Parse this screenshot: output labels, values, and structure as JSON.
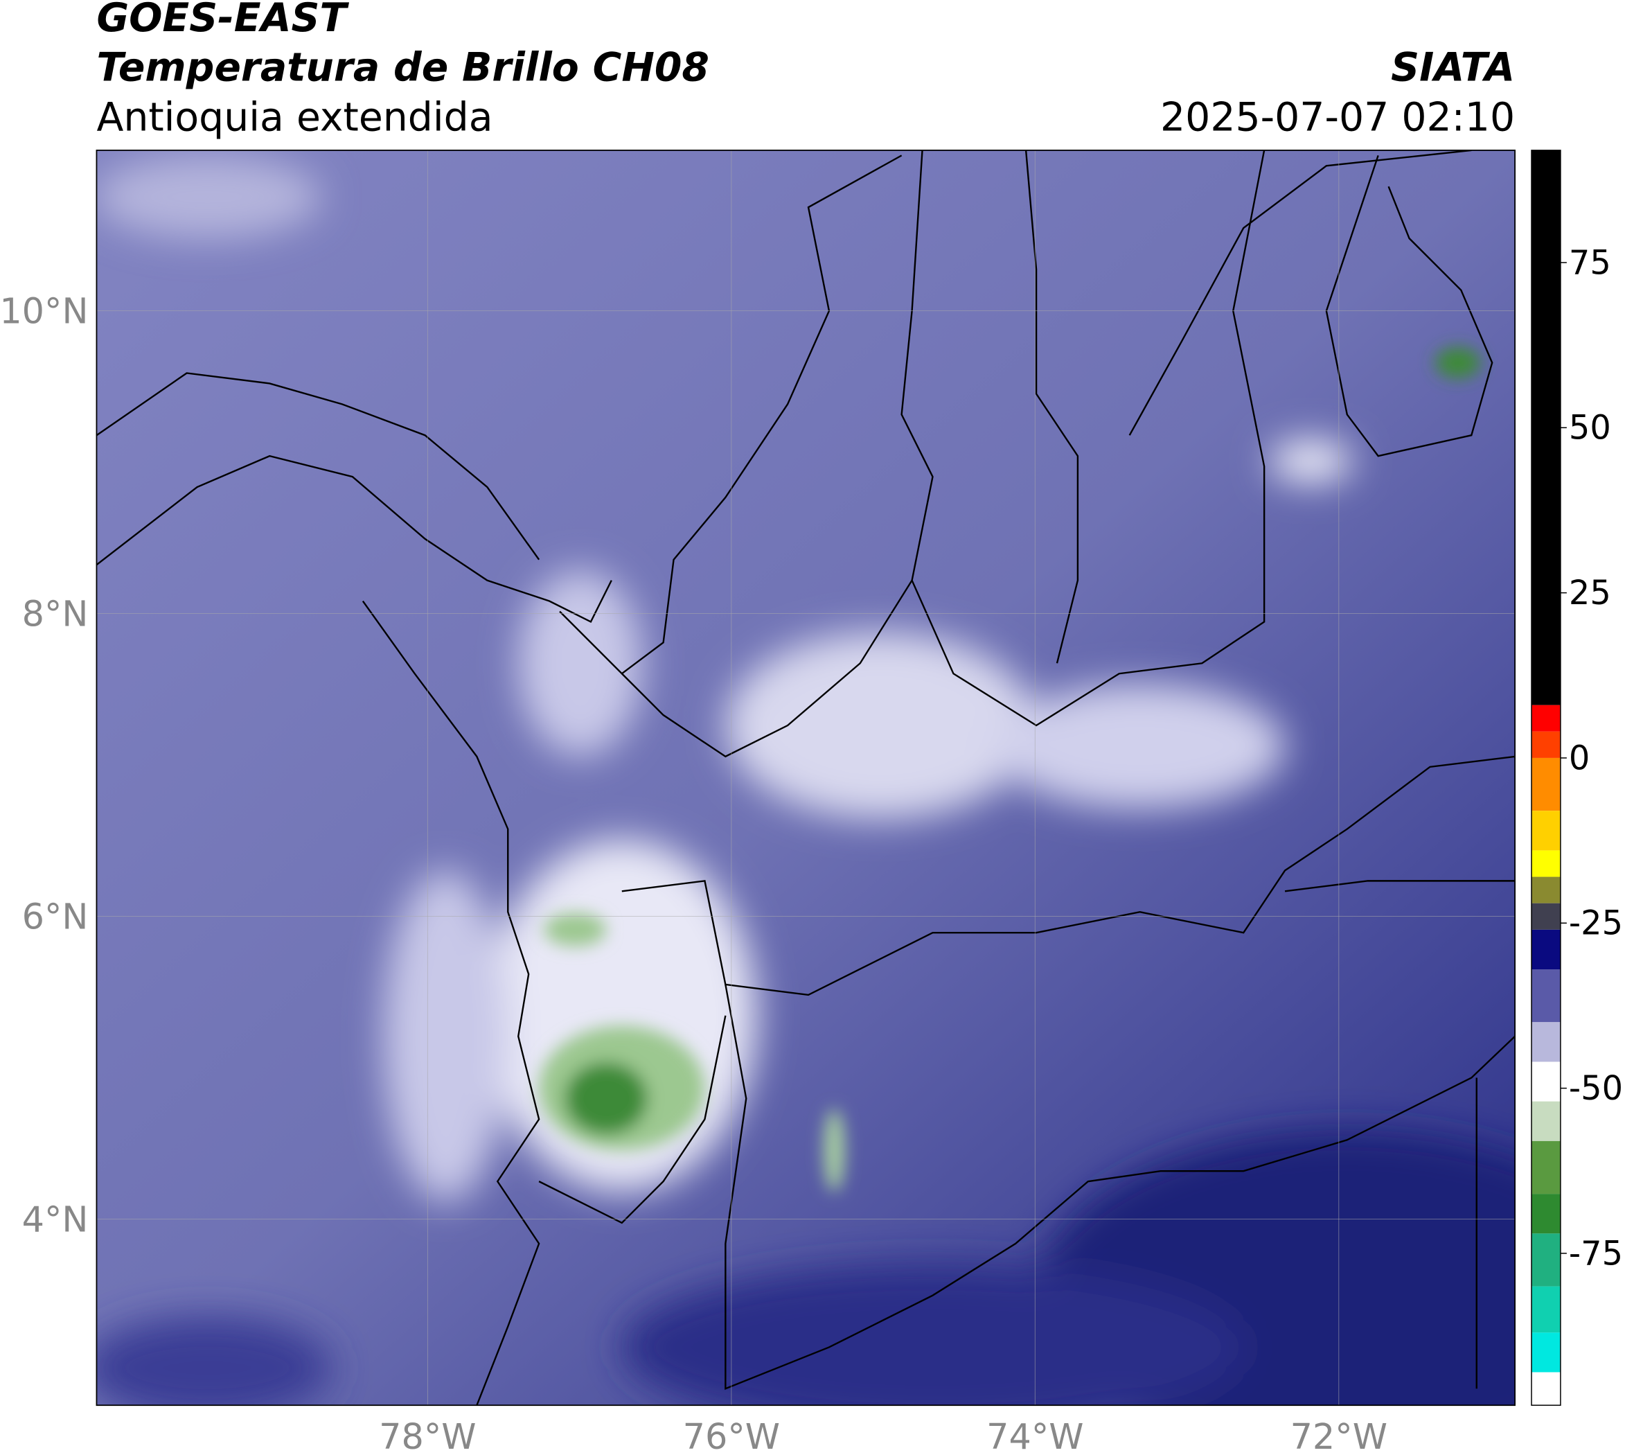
{
  "header": {
    "title": "GOES-EAST",
    "subtitle": "Temperatura de Brillo CH08",
    "region": "Antioquia extendida",
    "source": "SIATA",
    "datetime": "2025-07-07 02:10"
  },
  "map": {
    "lat_lim": [
      2.77,
      11.06
    ],
    "lon_lim": [
      -80.18,
      -70.84
    ],
    "grid": true,
    "lat_ticks": [
      {
        "value": 4,
        "label": "4°N"
      },
      {
        "value": 6,
        "label": "6°N"
      },
      {
        "value": 8,
        "label": "8°N"
      },
      {
        "value": 10,
        "label": "10°N"
      }
    ],
    "lon_ticks": [
      {
        "value": -78,
        "label": "78°W"
      },
      {
        "value": -76,
        "label": "76°W"
      },
      {
        "value": -74,
        "label": "74°W"
      },
      {
        "value": -72,
        "label": "72°W"
      }
    ]
  },
  "colorbar": {
    "lim": [
      -98,
      92
    ],
    "ticks": [
      -75,
      -50,
      -25,
      0,
      25,
      50,
      75
    ],
    "stops": [
      {
        "from": 8,
        "to": 92,
        "color": "#000000"
      },
      {
        "from": 4,
        "to": 8,
        "color": "#ff0000"
      },
      {
        "from": 0,
        "to": 4,
        "color": "#ff4000"
      },
      {
        "from": -8,
        "to": 0,
        "color": "#ff8c00"
      },
      {
        "from": -14,
        "to": -8,
        "color": "#ffd000"
      },
      {
        "from": -18,
        "to": -14,
        "color": "#ffff00"
      },
      {
        "from": -22,
        "to": -18,
        "color": "#8a8a30"
      },
      {
        "from": -26,
        "to": -22,
        "color": "#404050"
      },
      {
        "from": -32,
        "to": -26,
        "color": "#0a0a80"
      },
      {
        "from": -40,
        "to": -32,
        "color": "#5a5aa8"
      },
      {
        "from": -46,
        "to": -40,
        "color": "#b8b8dc"
      },
      {
        "from": -52,
        "to": -46,
        "color": "#ffffff"
      },
      {
        "from": -58,
        "to": -52,
        "color": "#c8dcc0"
      },
      {
        "from": -66,
        "to": -58,
        "color": "#5a9a40"
      },
      {
        "from": -72,
        "to": -66,
        "color": "#2e8a30"
      },
      {
        "from": -80,
        "to": -72,
        "color": "#20b080"
      },
      {
        "from": -87,
        "to": -80,
        "color": "#10d0b0"
      },
      {
        "from": -93,
        "to": -87,
        "color": "#00e8e0"
      },
      {
        "from": -98,
        "to": -93,
        "color": "#ffffff"
      }
    ]
  }
}
